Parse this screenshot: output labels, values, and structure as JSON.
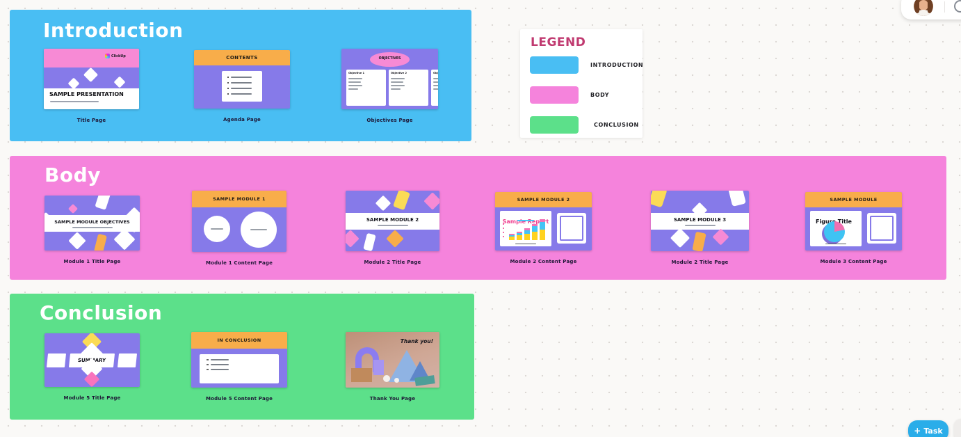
{
  "legend": {
    "title": "LEGEND",
    "items": [
      {
        "label": "INTRODUCTION",
        "color": "#49bef3"
      },
      {
        "label": "BODY",
        "color": "#f583dc"
      },
      {
        "label": "CONCLUSION",
        "color": "#5ce08a"
      }
    ]
  },
  "sections": {
    "introduction": {
      "title": "Introduction",
      "color": "#49bef3",
      "slides": {
        "title_page": {
          "caption": "Title Page",
          "brand": "ClickUp",
          "heading": "SAMPLE PRESENTATION"
        },
        "agenda_page": {
          "caption": "Agenda Page",
          "header": "CONTENTS"
        },
        "objectives_page": {
          "caption": "Objectives Page",
          "header": "OBJECTIVES",
          "cards": [
            {
              "title": "Objective 1"
            },
            {
              "title": "Objective 2"
            },
            {
              "title": "Objective 3"
            },
            {
              "title": "Objective 4"
            }
          ]
        }
      }
    },
    "body": {
      "title": "Body",
      "color": "#f583dc",
      "slides": {
        "module1_title": {
          "caption": "Module 1 Title Page",
          "heading": "SAMPLE MODULE OBJECTIVES"
        },
        "module1_content": {
          "caption": "Module 1 Content Page",
          "header": "SAMPLE MODULE 1"
        },
        "module2_title": {
          "caption": "Module 2 Title Page",
          "heading": "SAMPLE MODULE 2"
        },
        "module2_content": {
          "caption": "Module 2 Content Page",
          "header": "SAMPLE MODULE 2",
          "chart_title": "Sample Report"
        },
        "module3_title": {
          "caption": "Module 2 Title Page",
          "heading": "SAMPLE MODULE 3"
        },
        "module3_content": {
          "caption": "Module 3 Content Page",
          "header": "SAMPLE MODULE",
          "figure_title": "Figure Title"
        }
      }
    },
    "conclusion": {
      "title": "Conclusion",
      "color": "#5ce08a",
      "slides": {
        "summary": {
          "caption": "Module 5 Title Page",
          "heading": "SUMMARY"
        },
        "in_conclusion": {
          "caption": "Module 5 Content Page",
          "header": "IN CONCLUSION"
        },
        "thank_you": {
          "caption": "Thank You Page",
          "heading": "Thank you!"
        }
      }
    }
  },
  "chart_data": [
    {
      "type": "bar",
      "title": "Sample Report",
      "stacked": true,
      "colors_bottom_to_top": [
        "#ffd21f",
        "#45c4f5",
        "#f272b6"
      ],
      "bars": [
        [
          5,
          2,
          2
        ],
        [
          7,
          3,
          2
        ],
        [
          9,
          5,
          3
        ],
        [
          12,
          8,
          3
        ],
        [
          15,
          11,
          4
        ]
      ]
    },
    {
      "type": "pie",
      "title": "Figure Title",
      "slices": [
        {
          "color": "#f06fb0",
          "value": 22
        },
        {
          "color": "#3fc3f3",
          "value": 78
        }
      ]
    }
  ],
  "floating": {
    "plus": "+",
    "task_label": "Task",
    "accent": "#2aade9"
  }
}
